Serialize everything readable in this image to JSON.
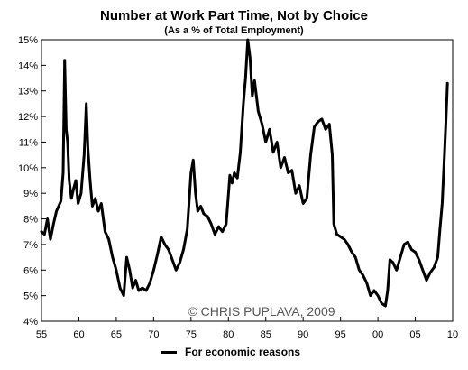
{
  "chart_data": {
    "type": "line",
    "title": "Number at Work Part Time, Not by Choice",
    "subtitle": "(As a % of Total Employment)",
    "watermark": "© CHRIS PUPLAVA, 2009",
    "xlabel": "",
    "ylabel": "",
    "xlim": [
      1955,
      2010
    ],
    "ylim": [
      4,
      15
    ],
    "y_ticks": [
      4,
      5,
      6,
      7,
      8,
      9,
      10,
      11,
      12,
      13,
      14,
      15
    ],
    "y_tick_labels": [
      "4%",
      "5%",
      "6%",
      "7%",
      "8%",
      "9%",
      "10%",
      "11%",
      "12%",
      "13%",
      "14%",
      "15%"
    ],
    "x_ticks": [
      1955,
      1960,
      1965,
      1970,
      1975,
      1980,
      1985,
      1990,
      1995,
      2000,
      2005,
      2010
    ],
    "x_tick_labels": [
      "55",
      "60",
      "65",
      "70",
      "75",
      "80",
      "85",
      "90",
      "95",
      "00",
      "05",
      "10"
    ],
    "grid": false,
    "legend_position": "bottom-center",
    "line_color": "#000000",
    "series": [
      {
        "name": "For economic reasons",
        "x": [
          1955.0,
          1955.4,
          1955.8,
          1956.2,
          1956.6,
          1957.0,
          1957.3,
          1957.6,
          1957.9,
          1958.1,
          1958.3,
          1958.5,
          1958.7,
          1959.0,
          1959.3,
          1959.6,
          1959.9,
          1960.3,
          1960.7,
          1961.0,
          1961.2,
          1961.5,
          1961.8,
          1962.2,
          1962.6,
          1963.0,
          1963.5,
          1964.0,
          1964.5,
          1965.0,
          1965.5,
          1966.0,
          1966.4,
          1966.8,
          1967.2,
          1967.6,
          1968.0,
          1968.5,
          1969.0,
          1969.5,
          1970.0,
          1970.5,
          1971.0,
          1971.5,
          1972.0,
          1972.5,
          1973.0,
          1973.5,
          1974.0,
          1974.5,
          1975.0,
          1975.3,
          1975.6,
          1975.9,
          1976.3,
          1976.7,
          1977.2,
          1977.7,
          1978.2,
          1978.7,
          1979.2,
          1979.7,
          1980.2,
          1980.5,
          1980.8,
          1981.2,
          1981.6,
          1982.0,
          1982.3,
          1982.6,
          1982.9,
          1983.2,
          1983.5,
          1984.0,
          1984.5,
          1985.0,
          1985.5,
          1986.0,
          1986.5,
          1987.0,
          1987.5,
          1988.0,
          1988.5,
          1989.0,
          1989.5,
          1990.0,
          1990.5,
          1991.0,
          1991.5,
          1992.0,
          1992.5,
          1993.0,
          1993.5,
          1993.9,
          1994.1,
          1994.5,
          1995.0,
          1995.5,
          1996.0,
          1996.5,
          1997.0,
          1997.5,
          1998.0,
          1998.5,
          1999.0,
          1999.5,
          2000.0,
          2000.5,
          2001.0,
          2001.3,
          2001.6,
          2002.0,
          2002.5,
          2003.0,
          2003.5,
          2004.0,
          2004.5,
          2005.0,
          2005.5,
          2006.0,
          2006.5,
          2007.0,
          2007.5,
          2008.0,
          2008.3,
          2008.6,
          2008.9,
          2009.1,
          2009.3
        ],
        "y": [
          7.5,
          7.4,
          8.0,
          7.2,
          7.8,
          8.3,
          8.5,
          8.7,
          9.8,
          14.2,
          11.5,
          11.0,
          9.5,
          8.8,
          9.2,
          9.5,
          8.6,
          9.0,
          10.5,
          12.5,
          10.8,
          9.5,
          8.5,
          8.8,
          8.3,
          8.6,
          7.5,
          7.2,
          6.5,
          6.0,
          5.3,
          5.0,
          6.5,
          6.0,
          5.3,
          5.6,
          5.2,
          5.3,
          5.2,
          5.5,
          6.0,
          6.6,
          7.3,
          7.0,
          6.8,
          6.4,
          6.0,
          6.3,
          6.8,
          7.6,
          9.8,
          10.3,
          9.0,
          8.3,
          8.5,
          8.2,
          8.1,
          7.8,
          7.4,
          7.7,
          7.5,
          7.8,
          9.7,
          9.4,
          9.8,
          9.6,
          10.6,
          12.5,
          13.5,
          15.0,
          14.3,
          12.8,
          13.4,
          12.2,
          11.7,
          11.0,
          11.5,
          10.6,
          11.0,
          10.0,
          10.4,
          9.8,
          9.9,
          9.0,
          9.3,
          8.6,
          8.8,
          10.5,
          11.6,
          11.8,
          11.9,
          11.5,
          11.7,
          10.5,
          7.8,
          7.4,
          7.3,
          7.2,
          7.0,
          6.7,
          6.5,
          6.0,
          5.8,
          5.5,
          5.0,
          5.2,
          5.0,
          4.7,
          4.6,
          5.2,
          6.4,
          6.3,
          6.0,
          6.5,
          7.0,
          7.1,
          6.8,
          6.7,
          6.4,
          6.0,
          5.6,
          5.9,
          6.1,
          6.5,
          7.6,
          8.6,
          10.5,
          11.8,
          13.3
        ]
      }
    ]
  }
}
